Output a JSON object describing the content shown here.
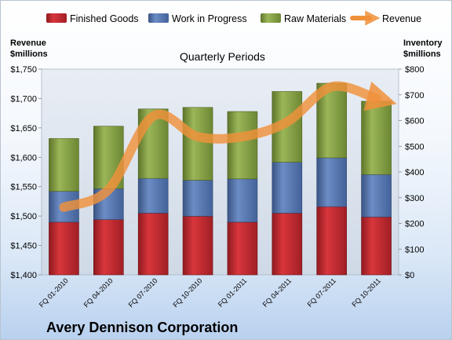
{
  "chart_data": {
    "type": "bar",
    "stacked": true,
    "title": "Quarterly Periods",
    "footer": "Avery Dennison Corporation",
    "categories": [
      "FQ 01-2010",
      "FQ 04-2010",
      "FQ 07-2010",
      "FQ 10-2010",
      "FQ 01-2011",
      "FQ 04-2011",
      "FQ 07-2011",
      "FQ 10-2011"
    ],
    "series": [
      {
        "name": "Finished Goods",
        "axis": "right",
        "color": "#c0272d",
        "values": [
          205,
          215,
          240,
          228,
          205,
          240,
          265,
          225
        ]
      },
      {
        "name": "Work in Progress",
        "axis": "right",
        "color": "#4f6fa6",
        "values": [
          120,
          120,
          135,
          140,
          168,
          198,
          190,
          165
        ]
      },
      {
        "name": "Raw Materials",
        "axis": "right",
        "color": "#7f9a3c",
        "values": [
          205,
          243,
          270,
          283,
          262,
          275,
          290,
          285
        ]
      },
      {
        "name": "Revenue",
        "axis": "left",
        "type": "line",
        "smooth": true,
        "color": "#f0913a",
        "values": [
          1515,
          1545,
          1670,
          1635,
          1635,
          1660,
          1720,
          1700
        ]
      }
    ],
    "left_axis": {
      "label": "Revenue\n$millions",
      "min": 1400,
      "max": 1750,
      "step": 50,
      "tick_labels": [
        "$1,400",
        "$1,450",
        "$1,500",
        "$1,550",
        "$1,600",
        "$1,650",
        "$1,700",
        "$1,750"
      ]
    },
    "right_axis": {
      "label": "Inventory\n$millions",
      "min": 0,
      "max": 800,
      "step": 100,
      "tick_labels": [
        "$0",
        "$100",
        "$200",
        "$300",
        "$400",
        "$500",
        "$600",
        "$700",
        "$800"
      ]
    },
    "legend": {
      "position": "top",
      "entries": [
        "Finished Goods",
        "Work in Progress",
        "Raw Materials",
        "Revenue"
      ]
    },
    "grid": false
  }
}
